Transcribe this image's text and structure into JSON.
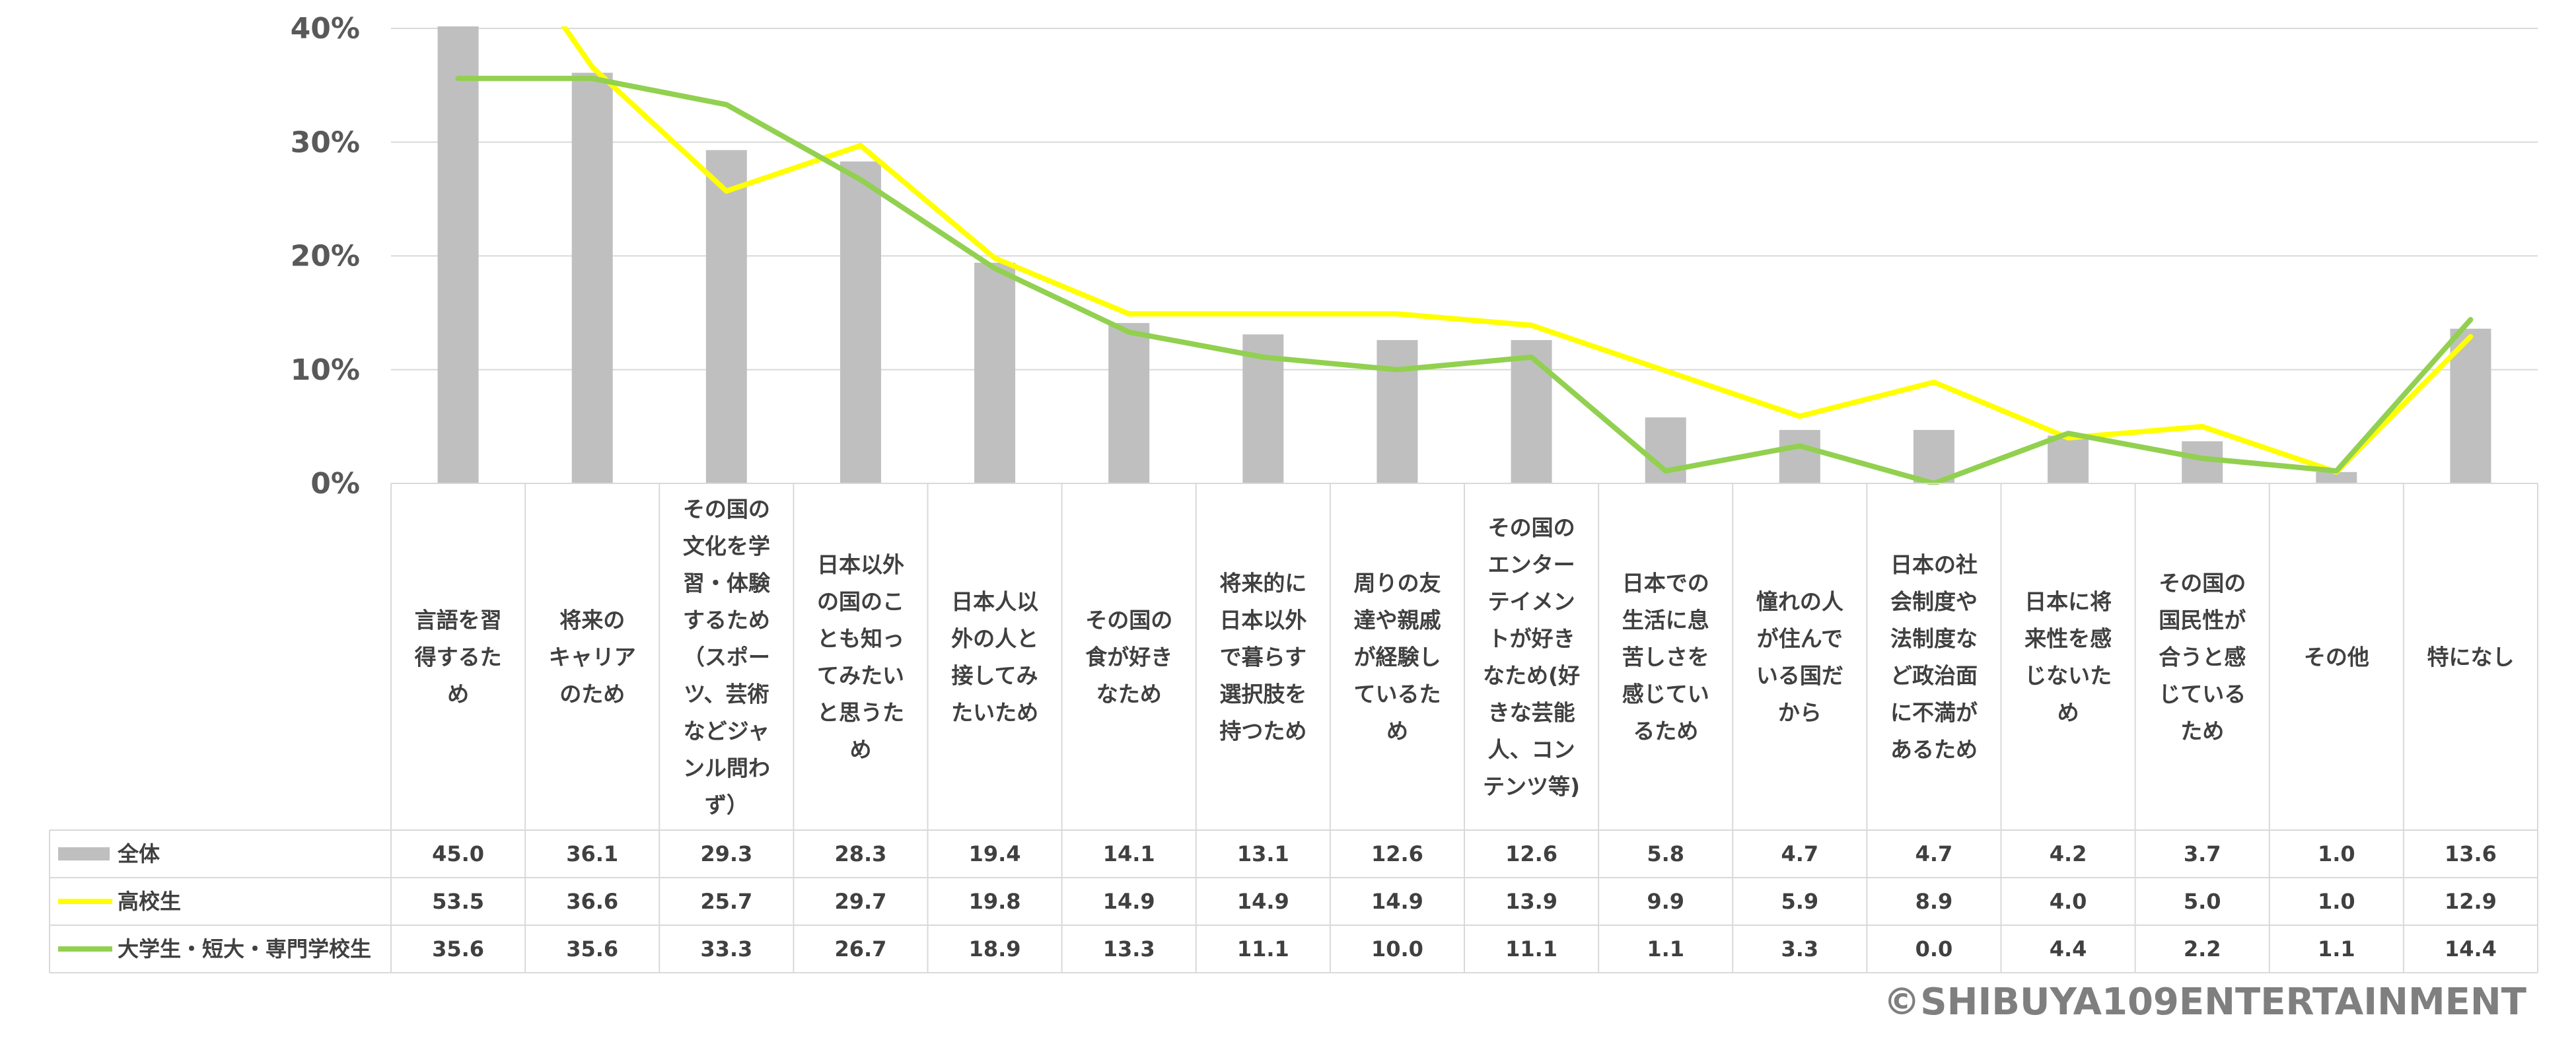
{
  "chart_data": {
    "type": "bar",
    "categories": [
      [
        "言語を習",
        "得するた",
        "め"
      ],
      [
        "将来の",
        "キャリア",
        "のため"
      ],
      [
        "その国の",
        "文化を学",
        "習・体験",
        "するため",
        "（スポー",
        "ツ、芸術",
        "などジャ",
        "ンル問わ",
        "ず）"
      ],
      [
        "日本以外",
        "の国のこ",
        "とも知っ",
        "てみたい",
        "と思うた",
        "め"
      ],
      [
        "日本人以",
        "外の人と",
        "接してみ",
        "たいため"
      ],
      [
        "その国の",
        "食が好き",
        "なため"
      ],
      [
        "将来的に",
        "日本以外",
        "で暮らす",
        "選択肢を",
        "持つため"
      ],
      [
        "周りの友",
        "達や親戚",
        "が経験し",
        "ているた",
        "め"
      ],
      [
        "その国の",
        "エンター",
        "テイメン",
        "トが好き",
        "なため(好",
        "きな芸能",
        "人、コン",
        "テンツ等)"
      ],
      [
        "日本での",
        "生活に息",
        "苦しさを",
        "感じてい",
        "るため"
      ],
      [
        "憧れの人",
        "が住んで",
        "いる国だ",
        "から"
      ],
      [
        "日本の社",
        "会制度や",
        "法制度な",
        "ど政治面",
        "に不満が",
        "あるため"
      ],
      [
        "日本に将",
        "来性を感",
        "じないた",
        "め"
      ],
      [
        "その国の",
        "国民性が",
        "合うと感",
        "じている",
        "ため"
      ],
      [
        "その他"
      ],
      [
        "特になし"
      ]
    ],
    "series": [
      {
        "name": "全体",
        "kind": "bar",
        "color": "#bfbfbf",
        "values": [
          45.0,
          36.1,
          29.3,
          28.3,
          19.4,
          14.1,
          13.1,
          12.6,
          12.6,
          5.8,
          4.7,
          4.7,
          4.2,
          3.7,
          1.0,
          13.6
        ]
      },
      {
        "name": "高校生",
        "kind": "line",
        "color": "#ffff00",
        "values": [
          53.5,
          36.6,
          25.7,
          29.7,
          19.8,
          14.9,
          14.9,
          14.9,
          13.9,
          9.9,
          5.9,
          8.9,
          4.0,
          5.0,
          1.0,
          12.9
        ]
      },
      {
        "name": "大学生・短大・専門学校生",
        "kind": "line",
        "color": "#92d050",
        "values": [
          35.6,
          35.6,
          33.3,
          26.7,
          18.9,
          13.3,
          11.1,
          10.0,
          11.1,
          1.1,
          3.3,
          0.0,
          4.4,
          2.2,
          1.1,
          14.4
        ]
      }
    ],
    "yticks": [
      "0%",
      "10%",
      "20%",
      "30%",
      "40%"
    ],
    "ylim": [
      0,
      40
    ],
    "grid": true,
    "legend": "data-table-left"
  },
  "copyright": "©SHIBUYA109ENTERTAINMENT"
}
